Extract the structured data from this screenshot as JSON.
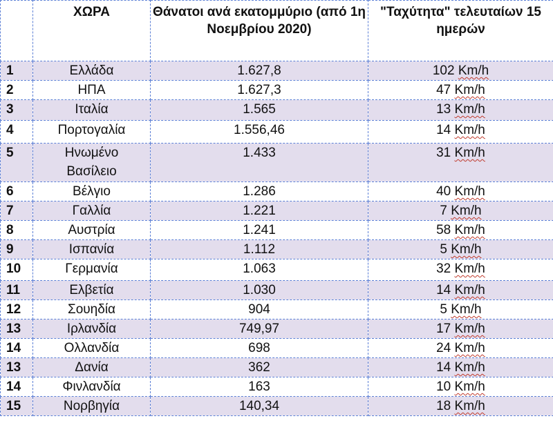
{
  "headers": {
    "num": "",
    "country": "ΧΩΡΑ",
    "deaths": "Θάνατοι ανά εκατομμύριο (από 1η Νοεμβρίου 2020)",
    "speed": "\"Ταχύτητα\" τελευταίων 15 ημερών"
  },
  "unit": "Km/h",
  "rows": [
    {
      "num": "1",
      "country": "Ελλάδα",
      "deaths": "1.627,8",
      "speed": "102"
    },
    {
      "num": "2",
      "country": "ΗΠΑ",
      "deaths": "1.627,3",
      "speed": "47"
    },
    {
      "num": "3",
      "country": "Ιταλία",
      "deaths": "1.565",
      "speed": "13"
    },
    {
      "num": "4",
      "country": "Πορτογαλία",
      "deaths": "1.556,46",
      "speed": "14"
    },
    {
      "num": "5",
      "country": "Ηνωμένο Βασίλειο",
      "deaths": "1.433",
      "speed": "31"
    },
    {
      "num": "6",
      "country": "Βέλγιο",
      "deaths": "1.286",
      "speed": "40"
    },
    {
      "num": "7",
      "country": "Γαλλία",
      "deaths": "1.221",
      "speed": "7"
    },
    {
      "num": "8",
      "country": "Αυστρία",
      "deaths": "1.241",
      "speed": "58"
    },
    {
      "num": "9",
      "country": "Ισπανία",
      "deaths": "1.112",
      "speed": "5"
    },
    {
      "num": "10",
      "country": "Γερμανία",
      "deaths": "1.063",
      "speed": "32"
    },
    {
      "num": "11",
      "country": "Ελβετία",
      "deaths": "1.030",
      "speed": "14"
    },
    {
      "num": "12",
      "country": "Σουηδία",
      "deaths": "904",
      "speed": "5"
    },
    {
      "num": "13",
      "country": "Ιρλανδία",
      "deaths": "749,97",
      "speed": "17"
    },
    {
      "num": "14",
      "country": "Ολλανδία",
      "deaths": "698",
      "speed": "24"
    },
    {
      "num": "13",
      "country": "Δανία",
      "deaths": "362",
      "speed": "14"
    },
    {
      "num": "14",
      "country": "Φινλανδία",
      "deaths": "163",
      "speed": "10"
    },
    {
      "num": "15",
      "country": "Νορβηγία",
      "deaths": "140,34",
      "speed": "18"
    }
  ]
}
